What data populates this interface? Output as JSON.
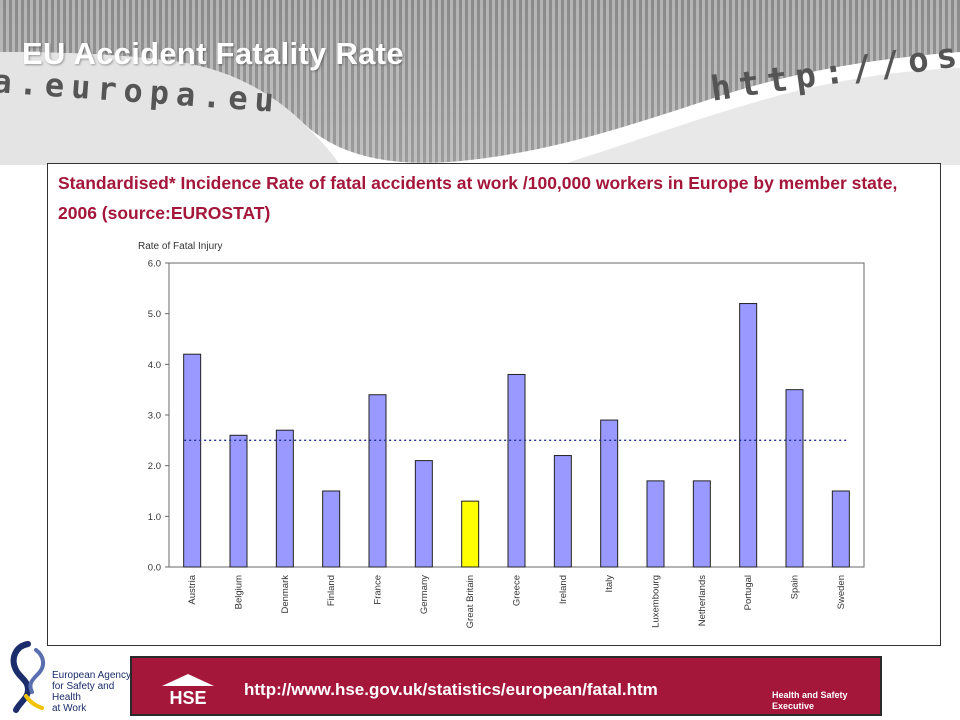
{
  "slide": {
    "title": "EU Accident Fatality Rate",
    "banner_url_left": "a.europa.eu",
    "banner_url_right": "http://osha"
  },
  "chart_title": "Standardised* Incidence Rate of fatal accidents at work /100,000 workers in Europe by member state, 2006 (source:EUROSTAT)",
  "chart_data": {
    "type": "bar",
    "ylabel": "Rate of Fatal Injury",
    "ylim": [
      0,
      6
    ],
    "yticks": [
      "0.0",
      "1.0",
      "2.0",
      "3.0",
      "4.0",
      "5.0",
      "6.0"
    ],
    "categories": [
      "Austria",
      "Belgium",
      "Denmark",
      "Finland",
      "France",
      "Germany",
      "Great Britain",
      "Greece",
      "Ireland",
      "Italy",
      "Luxembourg",
      "Netherlands",
      "Portugal",
      "Spain",
      "Sweden"
    ],
    "values": [
      4.2,
      2.6,
      2.7,
      1.5,
      3.4,
      2.1,
      1.3,
      3.8,
      2.2,
      2.9,
      1.7,
      1.7,
      5.2,
      3.5,
      1.5
    ],
    "highlight": "Great Britain",
    "reference_line": 2.5,
    "colors": {
      "bar": "#9999ff",
      "highlight": "#ffff00",
      "reference": "#1f2f8f"
    },
    "grid": false
  },
  "footer": {
    "agency_lines": [
      "European Agency",
      "for Safety and Health",
      "at Work"
    ],
    "hse_logo": "HSE",
    "url": "http://www.hse.gov.uk/statistics/european/fatal.htm",
    "hse_name_lines": [
      "Health and Safety",
      "Executive"
    ],
    "accent": "#a4163a"
  }
}
